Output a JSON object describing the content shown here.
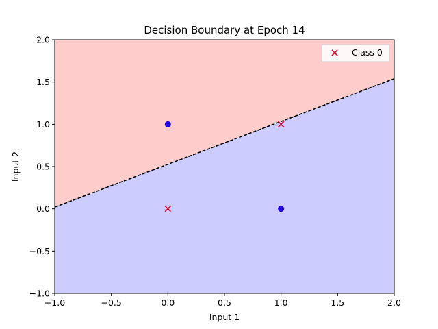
{
  "chart_data": {
    "type": "scatter",
    "title": "Decision Boundary at Epoch 14",
    "xlabel": "Input 1",
    "ylabel": "Input 2",
    "xlim": [
      -1.0,
      2.0
    ],
    "ylim": [
      -1.0,
      2.0
    ],
    "xticks": [
      "−1.0",
      "−0.5",
      "0.0",
      "0.5",
      "1.0",
      "1.5",
      "2.0"
    ],
    "xtick_values": [
      -1.0,
      -0.5,
      0.0,
      0.5,
      1.0,
      1.5,
      2.0
    ],
    "yticks": [
      "−1.0",
      "−0.5",
      "0.0",
      "0.5",
      "1.0",
      "1.5",
      "2.0"
    ],
    "ytick_values": [
      -1.0,
      -0.5,
      0.0,
      0.5,
      1.0,
      1.5,
      2.0
    ],
    "grid": false,
    "legend_position": "top-right",
    "boundary": {
      "x": [
        -1.0,
        2.0
      ],
      "y": [
        0.02,
        1.54
      ],
      "style": "dashed",
      "color": "#000000"
    },
    "regions": {
      "above_color": "#ffcccc",
      "below_color": "#ccccff"
    },
    "series": [
      {
        "name": "Class 0",
        "marker": "x",
        "color": "#e0002a",
        "points": [
          [
            0,
            0
          ],
          [
            1,
            1
          ]
        ]
      },
      {
        "name": "",
        "marker": "circle",
        "color": "#1f00e0",
        "points": [
          [
            0,
            1
          ],
          [
            1,
            0
          ]
        ]
      }
    ]
  }
}
